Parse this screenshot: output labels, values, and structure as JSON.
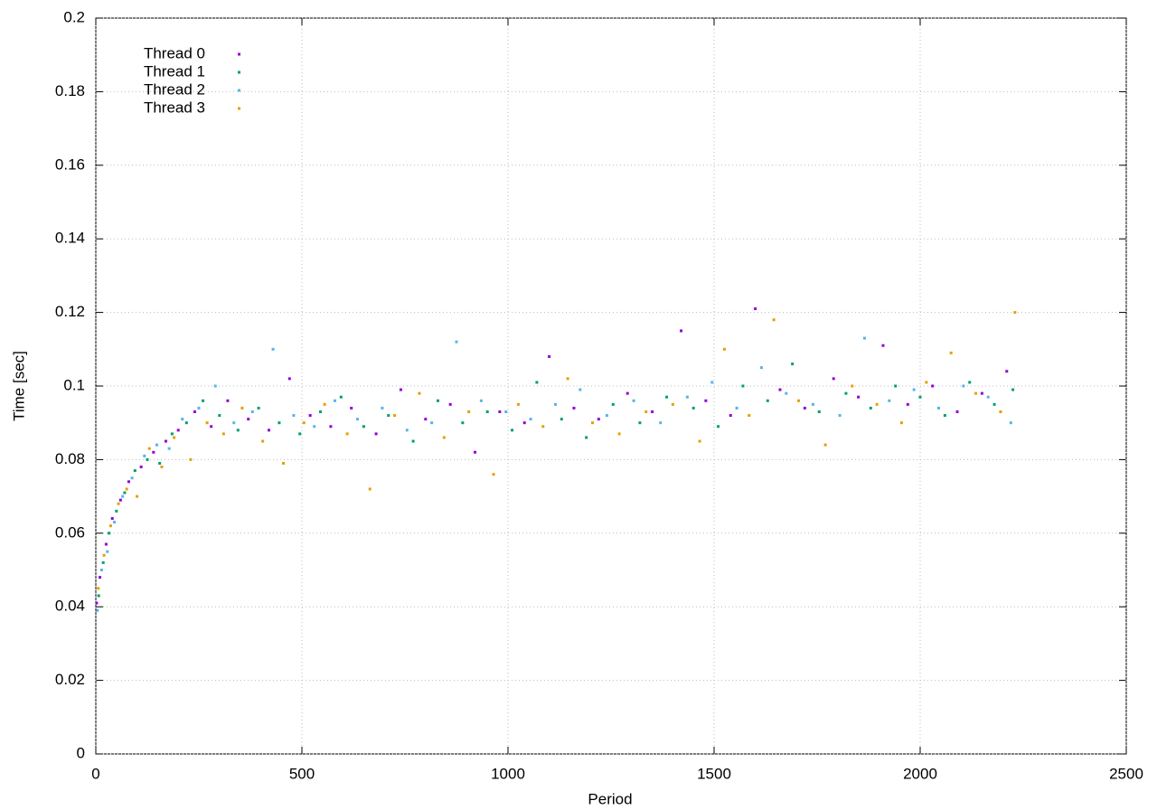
{
  "chart_data": {
    "type": "scatter",
    "xlabel": "Period",
    "ylabel": "Time [sec]",
    "xlim": [
      0,
      2500
    ],
    "xticks": [
      0,
      500,
      1000,
      1500,
      2000,
      2500
    ],
    "ylim": [
      0,
      0.2
    ],
    "yticks": [
      0,
      0.02,
      0.04,
      0.06,
      0.08,
      0.1,
      0.12,
      0.14,
      0.16,
      0.18,
      0.2
    ],
    "grid": true,
    "legend": "top-left",
    "series": [
      {
        "name": "Thread 0",
        "color": "#9400d3",
        "x": [
          2,
          10,
          25,
          40,
          60,
          80,
          110,
          140,
          170,
          200,
          240,
          280,
          320,
          370,
          420,
          470,
          520,
          570,
          620,
          680,
          740,
          800,
          860,
          920,
          980,
          1040,
          1100,
          1160,
          1220,
          1290,
          1350,
          1420,
          1480,
          1540,
          1600,
          1660,
          1720,
          1790,
          1850,
          1910,
          1970,
          2030,
          2090,
          2150,
          2210
        ],
        "values": [
          0.041,
          0.048,
          0.057,
          0.064,
          0.069,
          0.074,
          0.078,
          0.082,
          0.085,
          0.088,
          0.093,
          0.089,
          0.096,
          0.091,
          0.088,
          0.102,
          0.092,
          0.089,
          0.094,
          0.087,
          0.099,
          0.091,
          0.095,
          0.082,
          0.093,
          0.09,
          0.108,
          0.094,
          0.091,
          0.098,
          0.093,
          0.115,
          0.096,
          0.092,
          0.121,
          0.099,
          0.094,
          0.102,
          0.097,
          0.111,
          0.095,
          0.1,
          0.093,
          0.098,
          0.104
        ]
      },
      {
        "name": "Thread 1",
        "color": "#009e73",
        "x": [
          7,
          18,
          32,
          50,
          70,
          95,
          125,
          155,
          185,
          220,
          260,
          300,
          345,
          395,
          445,
          495,
          545,
          595,
          650,
          710,
          770,
          830,
          890,
          950,
          1010,
          1070,
          1130,
          1190,
          1255,
          1320,
          1385,
          1450,
          1510,
          1570,
          1630,
          1690,
          1755,
          1820,
          1880,
          1940,
          2000,
          2060,
          2120,
          2180,
          2225
        ],
        "values": [
          0.043,
          0.052,
          0.06,
          0.066,
          0.071,
          0.077,
          0.08,
          0.079,
          0.087,
          0.09,
          0.096,
          0.092,
          0.088,
          0.094,
          0.09,
          0.087,
          0.093,
          0.097,
          0.089,
          0.092,
          0.085,
          0.096,
          0.09,
          0.093,
          0.088,
          0.101,
          0.091,
          0.086,
          0.095,
          0.09,
          0.097,
          0.094,
          0.089,
          0.1,
          0.096,
          0.106,
          0.093,
          0.098,
          0.094,
          0.1,
          0.097,
          0.092,
          0.101,
          0.095,
          0.099
        ]
      },
      {
        "name": "Thread 2",
        "color": "#56b4e9",
        "x": [
          4,
          14,
          28,
          45,
          65,
          88,
          118,
          148,
          178,
          210,
          250,
          290,
          335,
          380,
          430,
          480,
          530,
          580,
          635,
          695,
          755,
          815,
          875,
          935,
          995,
          1055,
          1115,
          1175,
          1240,
          1305,
          1370,
          1435,
          1495,
          1555,
          1615,
          1675,
          1740,
          1805,
          1865,
          1925,
          1985,
          2045,
          2105,
          2165,
          2220
        ],
        "values": [
          0.039,
          0.05,
          0.055,
          0.063,
          0.07,
          0.075,
          0.081,
          0.084,
          0.083,
          0.091,
          0.094,
          0.1,
          0.09,
          0.093,
          0.11,
          0.092,
          0.089,
          0.096,
          0.091,
          0.094,
          0.088,
          0.09,
          0.112,
          0.096,
          0.093,
          0.091,
          0.095,
          0.099,
          0.092,
          0.096,
          0.09,
          0.097,
          0.101,
          0.094,
          0.105,
          0.098,
          0.095,
          0.092,
          0.113,
          0.096,
          0.099,
          0.094,
          0.1,
          0.097,
          0.09
        ]
      },
      {
        "name": "Thread 3",
        "color": "#e69f00",
        "x": [
          6,
          20,
          36,
          55,
          75,
          100,
          130,
          160,
          190,
          230,
          270,
          310,
          355,
          405,
          455,
          505,
          555,
          610,
          665,
          725,
          785,
          845,
          905,
          965,
          1025,
          1085,
          1145,
          1205,
          1270,
          1335,
          1400,
          1465,
          1525,
          1585,
          1645,
          1705,
          1770,
          1835,
          1895,
          1955,
          2015,
          2075,
          2135,
          2195,
          2230
        ],
        "values": [
          0.045,
          0.054,
          0.062,
          0.068,
          0.072,
          0.07,
          0.083,
          0.078,
          0.086,
          0.08,
          0.09,
          0.087,
          0.094,
          0.085,
          0.079,
          0.09,
          0.095,
          0.087,
          0.072,
          0.092,
          0.098,
          0.086,
          0.093,
          0.076,
          0.095,
          0.089,
          0.102,
          0.09,
          0.087,
          0.093,
          0.095,
          0.085,
          0.11,
          0.092,
          0.118,
          0.096,
          0.084,
          0.1,
          0.095,
          0.09,
          0.101,
          0.109,
          0.098,
          0.093,
          0.12
        ]
      }
    ]
  }
}
